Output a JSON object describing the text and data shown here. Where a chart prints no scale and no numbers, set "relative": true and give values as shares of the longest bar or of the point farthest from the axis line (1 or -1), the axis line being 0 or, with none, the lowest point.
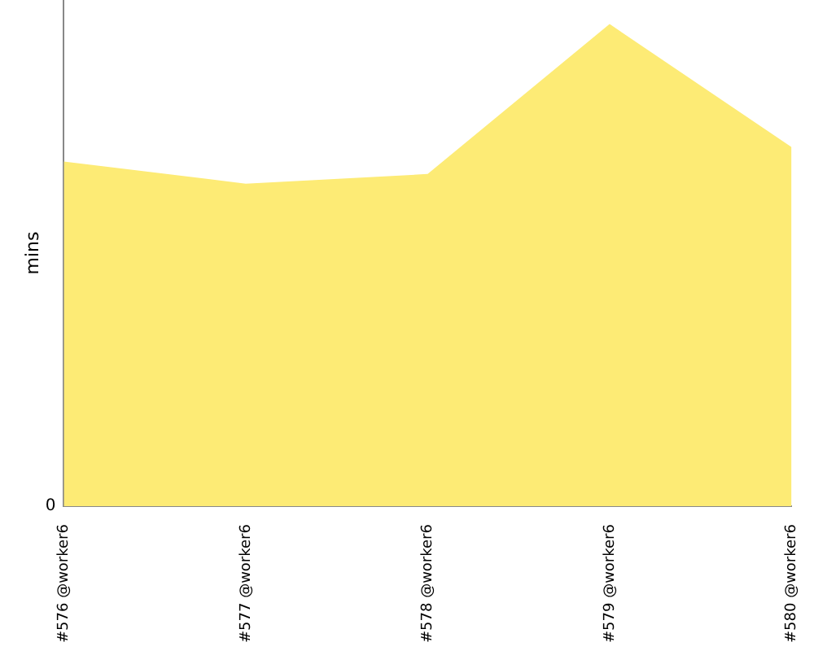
{
  "chart_data": {
    "type": "area",
    "ylabel": "mins",
    "relative": true,
    "annotations": [
      "0"
    ],
    "categories": [
      "#576 @worker6",
      "#577 @worker6",
      "#578 @worker6",
      "#579 @worker6",
      "#580 @worker6"
    ],
    "series": [
      {
        "color": "#fdeb75",
        "values": [
          0.715,
          0.669,
          0.689,
          1,
          0.745
        ]
      }
    ]
  }
}
